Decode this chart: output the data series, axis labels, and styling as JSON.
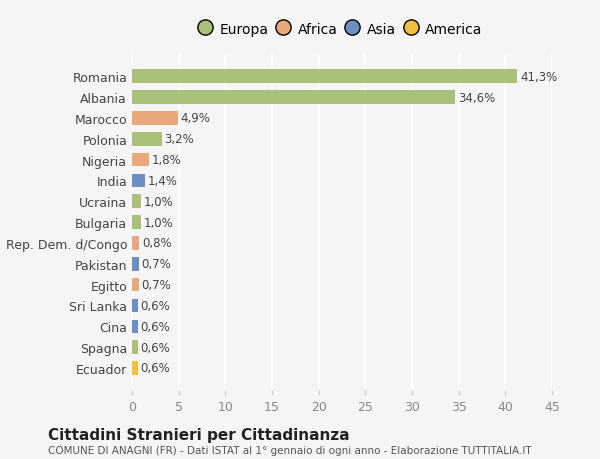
{
  "categories": [
    "Romania",
    "Albania",
    "Marocco",
    "Polonia",
    "Nigeria",
    "India",
    "Ucraina",
    "Bulgaria",
    "Rep. Dem. d/Congo",
    "Pakistan",
    "Egitto",
    "Sri Lanka",
    "Cina",
    "Spagna",
    "Ecuador"
  ],
  "values": [
    41.3,
    34.6,
    4.9,
    3.2,
    1.8,
    1.4,
    1.0,
    1.0,
    0.8,
    0.7,
    0.7,
    0.6,
    0.6,
    0.6,
    0.6
  ],
  "labels": [
    "41,3%",
    "34,6%",
    "4,9%",
    "3,2%",
    "1,8%",
    "1,4%",
    "1,0%",
    "1,0%",
    "0,8%",
    "0,7%",
    "0,7%",
    "0,6%",
    "0,6%",
    "0,6%",
    "0,6%"
  ],
  "colors": [
    "#a8c07a",
    "#a8c07a",
    "#e8a87c",
    "#a8c07a",
    "#e8a87c",
    "#6b8fc2",
    "#a8c07a",
    "#a8c07a",
    "#e8a87c",
    "#6b8fc2",
    "#e8a87c",
    "#6b8fc2",
    "#6b8fc2",
    "#a8c07a",
    "#f0c040"
  ],
  "legend_labels": [
    "Europa",
    "Africa",
    "Asia",
    "America"
  ],
  "legend_colors": [
    "#a8c07a",
    "#e8a87c",
    "#6b8fc2",
    "#f0c040"
  ],
  "xlim": [
    0,
    45
  ],
  "xticks": [
    0,
    5,
    10,
    15,
    20,
    25,
    30,
    35,
    40,
    45
  ],
  "title": "Cittadini Stranieri per Cittadinanza",
  "subtitle": "COMUNE DI ANAGNI (FR) - Dati ISTAT al 1° gennaio di ogni anno - Elaborazione TUTTITALIA.IT",
  "background_color": "#f5f5f5",
  "grid_color": "#ffffff",
  "bar_height": 0.65
}
